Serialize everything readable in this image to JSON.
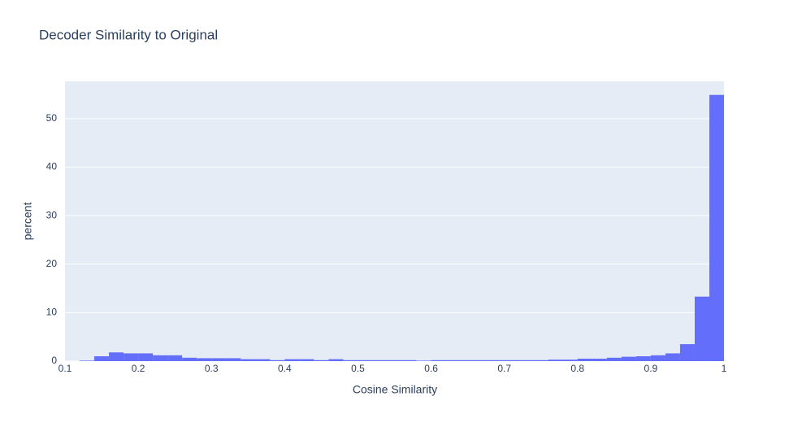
{
  "chart_data": {
    "type": "histogram",
    "title": "Decoder Similarity to Original",
    "x_label": "Cosine Similarity",
    "y_label": "percent",
    "color": "#636efa",
    "bins": [
      0.12,
      0.14,
      0.16,
      0.18,
      0.2,
      0.22,
      0.24,
      0.26,
      0.28,
      0.3,
      0.32,
      0.34,
      0.36,
      0.38,
      0.4,
      0.42,
      0.44,
      0.46,
      0.48,
      0.5,
      0.52,
      0.54,
      0.56,
      0.58,
      0.6,
      0.62,
      0.64,
      0.66,
      0.68,
      0.7,
      0.72,
      0.74,
      0.76,
      0.78,
      0.8,
      0.82,
      0.84,
      0.86,
      0.88,
      0.9,
      0.92,
      0.94,
      0.96,
      0.98,
      1.0
    ],
    "values": [
      0.1,
      1.0,
      1.8,
      1.6,
      1.6,
      1.2,
      1.2,
      0.7,
      0.6,
      0.6,
      0.6,
      0.4,
      0.4,
      0.2,
      0.4,
      0.4,
      0.2,
      0.4,
      0.2,
      0.2,
      0.2,
      0.2,
      0.2,
      0.1,
      0.2,
      0.2,
      0.2,
      0.2,
      0.2,
      0.2,
      0.2,
      0.2,
      0.3,
      0.3,
      0.5,
      0.5,
      0.7,
      0.9,
      1.0,
      1.2,
      1.6,
      3.5,
      13.3,
      54.9
    ],
    "xlim": [
      0.1,
      1
    ],
    "xticks": [
      0.1,
      0.2,
      0.3,
      0.4,
      0.5,
      0.6,
      0.7,
      0.8,
      0.9,
      1
    ],
    "ylim": [
      0,
      57.7
    ],
    "yticks": [
      0,
      10,
      20,
      30,
      40,
      50
    ],
    "grid": true
  }
}
